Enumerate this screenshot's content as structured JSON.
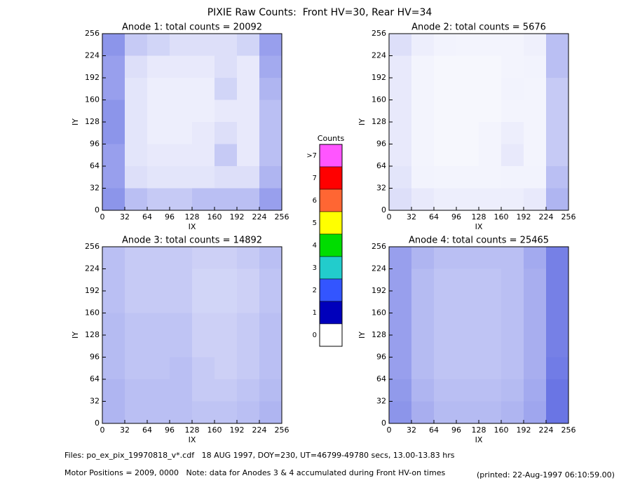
{
  "title": "PIXIE Raw Counts:  Front HV=30, Rear HV=34",
  "chart_data": [
    {
      "type": "heatmap",
      "title": "Anode 1: total counts = 20092",
      "xlabel": "IX",
      "ylabel": "IY",
      "xlim": [
        0,
        256
      ],
      "ylim": [
        0,
        256
      ],
      "xticks": [
        0,
        32,
        64,
        96,
        128,
        160,
        192,
        224,
        256
      ],
      "yticks": [
        0,
        32,
        64,
        96,
        128,
        160,
        192,
        224,
        256
      ],
      "values": [
        [
          0.5,
          0.25,
          0.2,
          0.15,
          0.15,
          0.15,
          0.2,
          0.45
        ],
        [
          0.45,
          0.15,
          0.1,
          0.1,
          0.1,
          0.15,
          0.1,
          0.4
        ],
        [
          0.45,
          0.12,
          0.08,
          0.08,
          0.08,
          0.2,
          0.1,
          0.35
        ],
        [
          0.5,
          0.12,
          0.08,
          0.08,
          0.08,
          0.1,
          0.1,
          0.3
        ],
        [
          0.5,
          0.12,
          0.08,
          0.08,
          0.1,
          0.15,
          0.1,
          0.3
        ],
        [
          0.45,
          0.12,
          0.1,
          0.1,
          0.1,
          0.25,
          0.1,
          0.3
        ],
        [
          0.45,
          0.15,
          0.12,
          0.12,
          0.12,
          0.15,
          0.15,
          0.35
        ],
        [
          0.5,
          0.3,
          0.25,
          0.25,
          0.3,
          0.3,
          0.3,
          0.45
        ]
      ]
    },
    {
      "type": "heatmap",
      "title": "Anode 2: total counts = 5676",
      "xlabel": "IX",
      "ylabel": "IY",
      "xlim": [
        0,
        256
      ],
      "ylim": [
        0,
        256
      ],
      "xticks": [
        0,
        32,
        64,
        96,
        128,
        160,
        192,
        224,
        256
      ],
      "yticks": [
        0,
        32,
        64,
        96,
        128,
        160,
        192,
        224,
        256
      ],
      "values": [
        [
          0.15,
          0.08,
          0.06,
          0.05,
          0.05,
          0.05,
          0.07,
          0.3
        ],
        [
          0.1,
          0.05,
          0.04,
          0.04,
          0.04,
          0.05,
          0.06,
          0.3
        ],
        [
          0.1,
          0.05,
          0.04,
          0.04,
          0.04,
          0.06,
          0.05,
          0.25
        ],
        [
          0.1,
          0.05,
          0.04,
          0.04,
          0.04,
          0.05,
          0.05,
          0.25
        ],
        [
          0.1,
          0.05,
          0.04,
          0.04,
          0.05,
          0.08,
          0.05,
          0.25
        ],
        [
          0.1,
          0.05,
          0.04,
          0.04,
          0.05,
          0.1,
          0.05,
          0.25
        ],
        [
          0.12,
          0.06,
          0.05,
          0.05,
          0.05,
          0.06,
          0.06,
          0.3
        ],
        [
          0.15,
          0.1,
          0.08,
          0.08,
          0.08,
          0.08,
          0.1,
          0.35
        ]
      ]
    },
    {
      "type": "heatmap",
      "title": "Anode 3: total counts = 14892",
      "xlabel": "IX",
      "ylabel": "IY",
      "xlim": [
        0,
        256
      ],
      "ylim": [
        0,
        256
      ],
      "xticks": [
        0,
        32,
        64,
        96,
        128,
        160,
        192,
        224,
        256
      ],
      "yticks": [
        0,
        32,
        64,
        96,
        128,
        160,
        192,
        224,
        256
      ],
      "values": [
        [
          0.3,
          0.25,
          0.25,
          0.25,
          0.22,
          0.22,
          0.25,
          0.3
        ],
        [
          0.3,
          0.25,
          0.25,
          0.25,
          0.2,
          0.2,
          0.22,
          0.28
        ],
        [
          0.3,
          0.25,
          0.25,
          0.25,
          0.2,
          0.2,
          0.22,
          0.28
        ],
        [
          0.32,
          0.28,
          0.28,
          0.28,
          0.22,
          0.22,
          0.25,
          0.3
        ],
        [
          0.32,
          0.28,
          0.28,
          0.28,
          0.22,
          0.22,
          0.25,
          0.3
        ],
        [
          0.32,
          0.28,
          0.28,
          0.3,
          0.25,
          0.22,
          0.25,
          0.3
        ],
        [
          0.35,
          0.3,
          0.3,
          0.3,
          0.25,
          0.25,
          0.28,
          0.32
        ],
        [
          0.35,
          0.3,
          0.3,
          0.3,
          0.28,
          0.28,
          0.3,
          0.35
        ]
      ]
    },
    {
      "type": "heatmap",
      "title": "Anode 4: total counts = 25465",
      "xlabel": "IX",
      "ylabel": "IY",
      "xlim": [
        0,
        256
      ],
      "ylim": [
        0,
        256
      ],
      "xticks": [
        0,
        32,
        64,
        96,
        128,
        160,
        192,
        224,
        256
      ],
      "yticks": [
        0,
        32,
        64,
        96,
        128,
        160,
        192,
        224,
        256
      ],
      "values": [
        [
          0.45,
          0.35,
          0.3,
          0.3,
          0.3,
          0.3,
          0.4,
          0.6
        ],
        [
          0.45,
          0.32,
          0.28,
          0.28,
          0.28,
          0.3,
          0.38,
          0.6
        ],
        [
          0.45,
          0.32,
          0.28,
          0.28,
          0.28,
          0.3,
          0.38,
          0.6
        ],
        [
          0.45,
          0.32,
          0.28,
          0.28,
          0.28,
          0.3,
          0.38,
          0.6
        ],
        [
          0.45,
          0.32,
          0.28,
          0.28,
          0.28,
          0.3,
          0.38,
          0.6
        ],
        [
          0.45,
          0.32,
          0.28,
          0.28,
          0.28,
          0.3,
          0.38,
          0.62
        ],
        [
          0.48,
          0.35,
          0.3,
          0.3,
          0.3,
          0.32,
          0.4,
          0.65
        ],
        [
          0.5,
          0.38,
          0.32,
          0.32,
          0.32,
          0.35,
          0.42,
          0.65
        ]
      ]
    }
  ],
  "colorbar": {
    "title": "Counts",
    "labels": [
      ">7",
      7,
      6,
      5,
      4,
      3,
      2,
      1,
      0
    ],
    "colors": [
      "#ff55ff",
      "#ff0000",
      "#ff6633",
      "#ffff00",
      "#00dd00",
      "#22cccc",
      "#3355ff",
      "#0000bb",
      "#ffffff"
    ]
  },
  "footer": {
    "files": "Files: po_ex_pix_19970818_v*.cdf   18 AUG 1997, DOY=230, UT=46799-49780 secs, 13.00-13.83 hrs",
    "motor": "Motor Positions = 2009, 0000   Note: data for Anodes 3 & 4 accumulated during Front HV-on times",
    "printed": "(printed: 22-Aug-1997 06:10:59.00)"
  }
}
